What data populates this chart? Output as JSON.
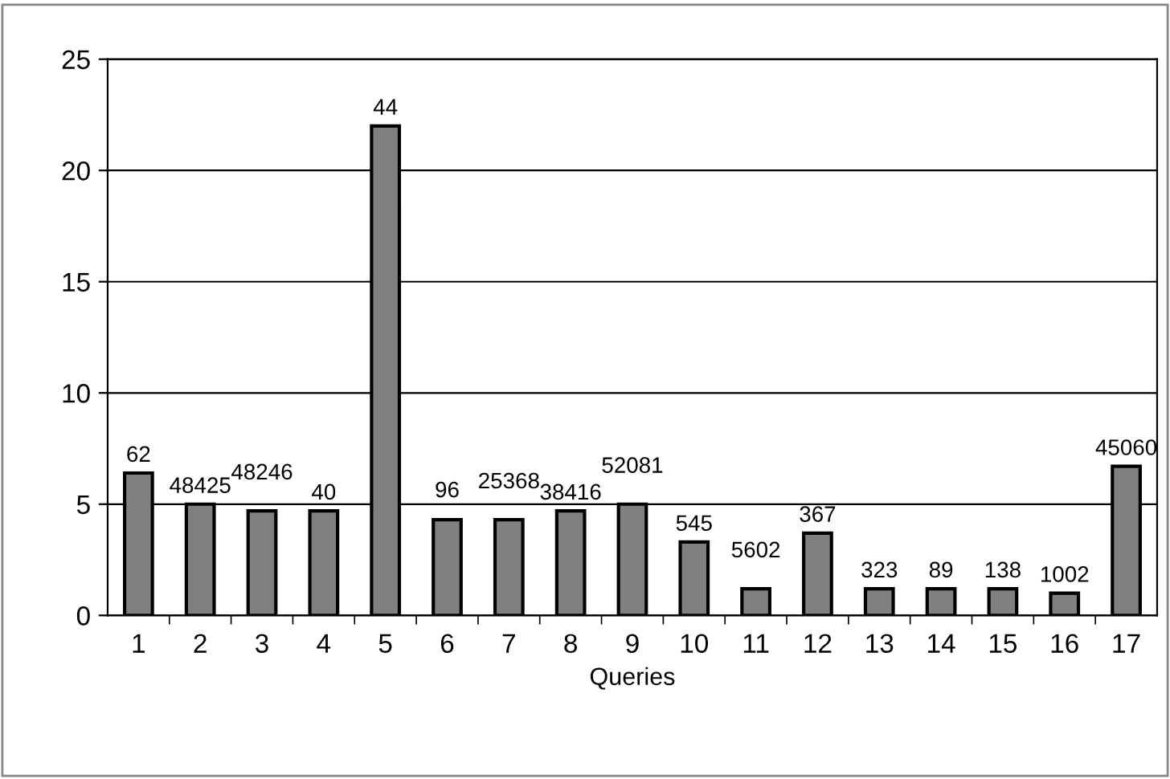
{
  "chart_data": {
    "type": "bar",
    "xlabel": "Queries",
    "categories": [
      "1",
      "2",
      "3",
      "4",
      "5",
      "6",
      "7",
      "8",
      "9",
      "10",
      "11",
      "12",
      "13",
      "14",
      "15",
      "16",
      "17"
    ],
    "values": [
      6.4,
      5.0,
      4.7,
      4.7,
      22,
      4.3,
      4.3,
      4.7,
      5.0,
      3.3,
      1.2,
      3.7,
      1.2,
      1.2,
      1.2,
      1.0,
      6.7
    ],
    "annotations": [
      {
        "text": "62",
        "x": "1",
        "y": 6.4
      },
      {
        "text": "48425",
        "x": "2",
        "y": 5.0
      },
      {
        "text": "48246",
        "x": "3",
        "y": 4.7
      },
      {
        "text": "40",
        "x": "4",
        "y": 4.7
      },
      {
        "text": "44",
        "x": "5",
        "y": 22
      },
      {
        "text": "96",
        "x": "6",
        "y": 4.3
      },
      {
        "text": "25368",
        "x": "7",
        "y": 4.3
      },
      {
        "text": "38416",
        "x": "8",
        "y": 4.7
      },
      {
        "text": "52081",
        "x": "9",
        "y": 5.0
      },
      {
        "text": "545",
        "x": "10",
        "y": 3.3
      },
      {
        "text": "5602",
        "x": "11",
        "y": 1.2
      },
      {
        "text": "367",
        "x": "12",
        "y": 3.7
      },
      {
        "text": "323",
        "x": "13",
        "y": 1.2
      },
      {
        "text": "89",
        "x": "14",
        "y": 1.2
      },
      {
        "text": "138",
        "x": "15",
        "y": 1.2
      },
      {
        "text": "1002",
        "x": "16",
        "y": 1.0
      },
      {
        "text": "45060",
        "x": "17",
        "y": 6.7
      }
    ],
    "color": "#808080",
    "ylim": [
      0,
      25
    ],
    "yticks": [
      0,
      5,
      10,
      15,
      20,
      25
    ],
    "grid": "y",
    "legend": false
  }
}
